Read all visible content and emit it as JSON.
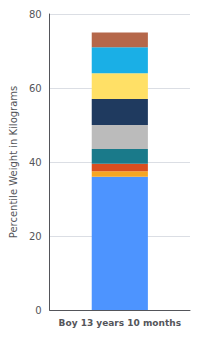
{
  "chart_data": {
    "type": "bar",
    "stacked": true,
    "categories": [
      "Boy 13 years 10 months"
    ],
    "series": [
      {
        "color": "#4D94FF",
        "values": [
          36.0
        ]
      },
      {
        "color": "#F5A623",
        "values": [
          1.5
        ]
      },
      {
        "color": "#D94E1F",
        "values": [
          2.0
        ]
      },
      {
        "color": "#1A7A8A",
        "values": [
          4.0
        ]
      },
      {
        "color": "#BBBBBB",
        "values": [
          6.5
        ]
      },
      {
        "color": "#1F3A5F",
        "values": [
          7.0
        ]
      },
      {
        "color": "#FFE066",
        "values": [
          7.0
        ]
      },
      {
        "color": "#1AAFE6",
        "values": [
          7.0
        ]
      },
      {
        "color": "#B5674A",
        "values": [
          4.0
        ]
      }
    ],
    "ylabel": "Percentile Weight in Kilograms",
    "ylim": [
      0,
      80
    ],
    "yticks": [
      0,
      20,
      40,
      60,
      80
    ],
    "grid": true
  }
}
